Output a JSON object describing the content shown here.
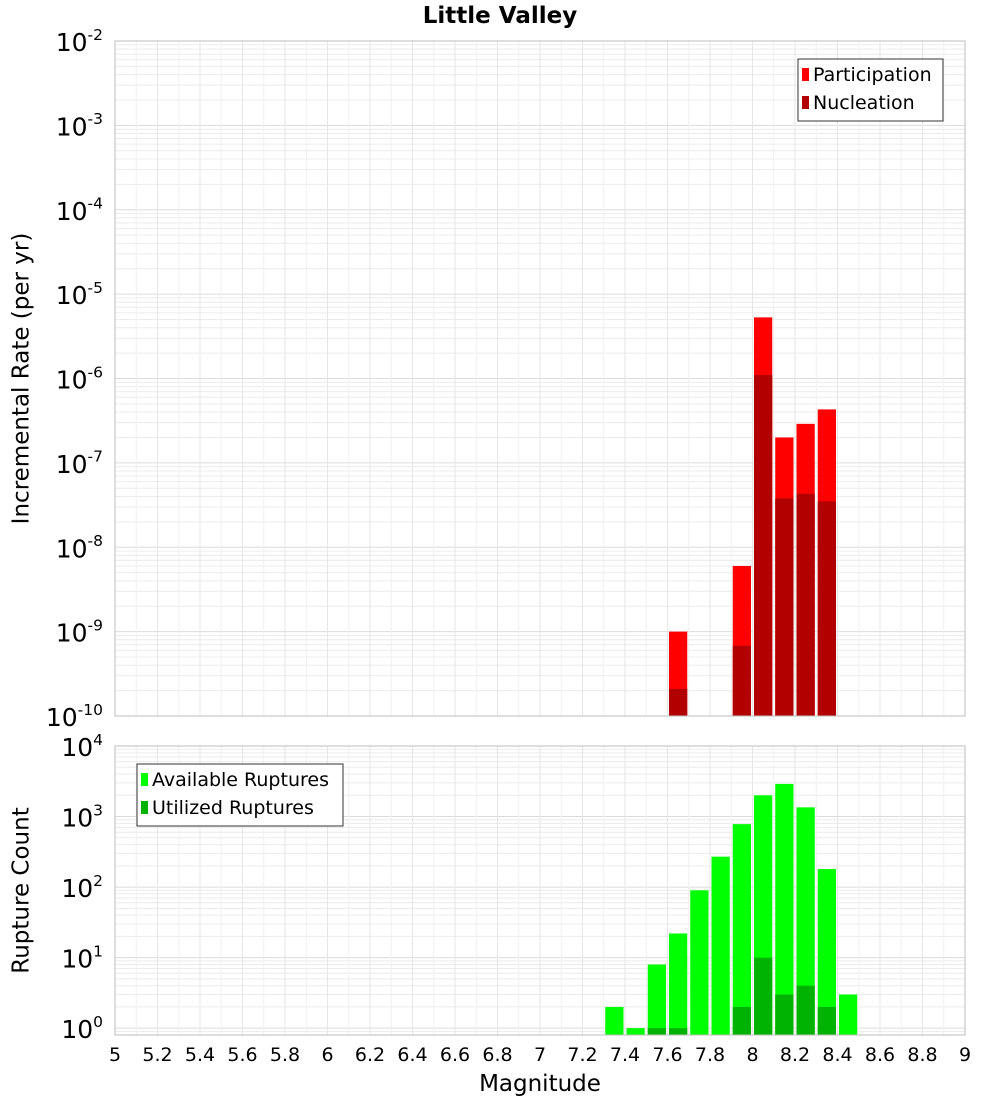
{
  "chart_data": [
    {
      "type": "bar",
      "title": "Little Valley",
      "xlabel": "",
      "ylabel": "Incremental Rate (per yr)",
      "y_scale": "log",
      "ylim": [
        1e-10,
        0.01
      ],
      "xlim": [
        5,
        9
      ],
      "y_ticks": [
        {
          "base": "10",
          "exp": "-10",
          "value": 1e-10
        },
        {
          "base": "10",
          "exp": "-9",
          "value": 1e-09
        },
        {
          "base": "10",
          "exp": "-8",
          "value": 1e-08
        },
        {
          "base": "10",
          "exp": "-7",
          "value": 1e-07
        },
        {
          "base": "10",
          "exp": "-6",
          "value": 1e-06
        },
        {
          "base": "10",
          "exp": "-5",
          "value": 1e-05
        },
        {
          "base": "10",
          "exp": "-4",
          "value": 0.0001
        },
        {
          "base": "10",
          "exp": "-3",
          "value": 0.001
        },
        {
          "base": "10",
          "exp": "-2",
          "value": 0.01
        }
      ],
      "grid": true,
      "legend_position": "top-right",
      "series": [
        {
          "name": "Participation",
          "color": "#ff0000",
          "x": [
            7.65,
            7.95,
            8.05,
            8.15,
            8.25,
            8.35
          ],
          "values": [
            1e-09,
            6e-09,
            5.3e-06,
            2e-07,
            2.9e-07,
            4.3e-07
          ]
        },
        {
          "name": "Nucleation",
          "color": "#b20000",
          "x": [
            7.65,
            7.95,
            8.05,
            8.15,
            8.25,
            8.35
          ],
          "values": [
            2.1e-10,
            6.8e-10,
            1.1e-06,
            3.8e-08,
            4.3e-08,
            3.5e-08
          ]
        }
      ]
    },
    {
      "type": "bar",
      "title": "",
      "xlabel": "Magnitude",
      "ylabel": "Rupture Count",
      "y_scale": "log",
      "ylim": [
        0.8,
        10000
      ],
      "xlim": [
        5,
        9
      ],
      "x_ticks": [
        "5",
        "5.2",
        "5.4",
        "5.6",
        "5.8",
        "6",
        "6.2",
        "6.4",
        "6.6",
        "6.8",
        "7",
        "7.2",
        "7.4",
        "7.6",
        "7.8",
        "8",
        "8.2",
        "8.4",
        "8.6",
        "8.8",
        "9"
      ],
      "y_ticks": [
        {
          "base": "10",
          "exp": "0",
          "value": 1
        },
        {
          "base": "10",
          "exp": "1",
          "value": 10
        },
        {
          "base": "10",
          "exp": "2",
          "value": 100
        },
        {
          "base": "10",
          "exp": "3",
          "value": 1000
        },
        {
          "base": "10",
          "exp": "4",
          "value": 10000
        }
      ],
      "grid": true,
      "legend_position": "top-left",
      "series": [
        {
          "name": "Available Ruptures",
          "color": "#00ff00",
          "x": [
            7.35,
            7.45,
            7.55,
            7.65,
            7.75,
            7.85,
            7.95,
            8.05,
            8.15,
            8.25,
            8.35,
            8.45
          ],
          "values": [
            2,
            1,
            8,
            22,
            90,
            270,
            780,
            2000,
            2900,
            1350,
            180,
            3
          ]
        },
        {
          "name": "Utilized Ruptures",
          "color": "#00b200",
          "x": [
            7.55,
            7.65,
            7.95,
            8.05,
            8.15,
            8.25,
            8.35
          ],
          "values": [
            1,
            1,
            2,
            10,
            3,
            4,
            2
          ]
        }
      ]
    }
  ]
}
